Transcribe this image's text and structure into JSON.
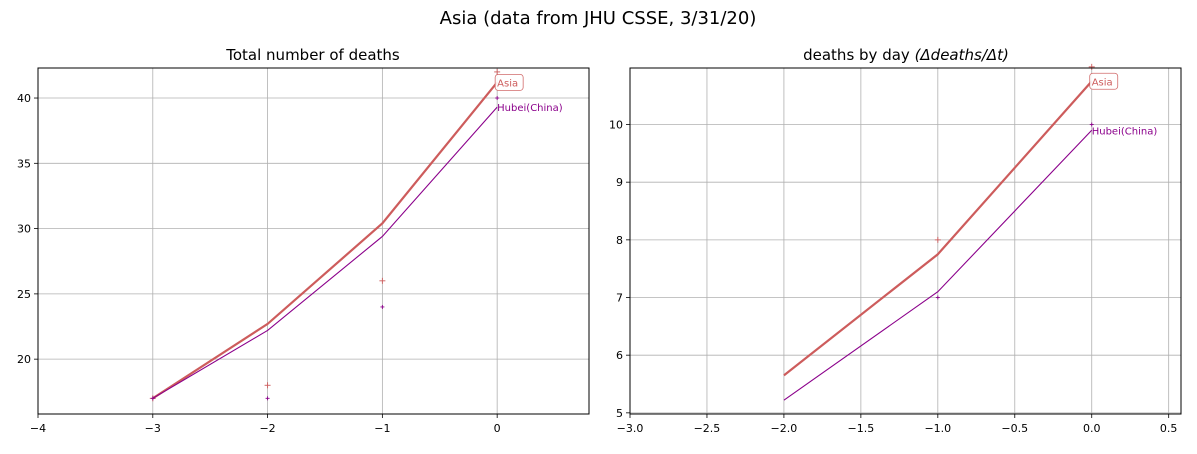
{
  "figure": {
    "suptitle": "Asia (data from JHU CSSE, 3/31/20)"
  },
  "colors": {
    "asia": "#cd5c5c",
    "hubei": "#8b008b",
    "grid": "#b0b0b0",
    "axis": "#000000"
  },
  "chart_data": [
    {
      "type": "line",
      "title": "Total number of deaths",
      "xlabel": "",
      "ylabel": "",
      "xlim": [
        -4,
        0.8
      ],
      "ylim": [
        15.8,
        42.3
      ],
      "xticks": [
        -4,
        -3,
        -2,
        -1,
        0
      ],
      "xtick_labels": [
        "−4",
        "−3",
        "−2",
        "−1",
        "0"
      ],
      "yticks": [
        20,
        25,
        30,
        35,
        40
      ],
      "ytick_labels": [
        "20",
        "25",
        "30",
        "35",
        "40"
      ],
      "grid": true,
      "series": [
        {
          "name": "Asia",
          "color": "#cd5c5c",
          "x": [
            -3,
            -2,
            -1,
            0
          ],
          "fit": [
            17.0,
            22.7,
            30.4,
            41.2
          ],
          "points": [
            17,
            18,
            26,
            42
          ]
        },
        {
          "name": "Hubei(China)",
          "color": "#8b008b",
          "x": [
            -3,
            -2,
            -1,
            0
          ],
          "fit": [
            17.0,
            22.2,
            29.4,
            39.3
          ],
          "points": [
            17,
            17,
            24,
            40
          ]
        }
      ]
    },
    {
      "type": "line",
      "title": "deaths by day",
      "title_math": "(Δdeaths/Δt)",
      "xlabel": "",
      "ylabel": "",
      "xlim": [
        -3.0,
        0.58
      ],
      "ylim": [
        4.98,
        10.98
      ],
      "xticks": [
        -3.0,
        -2.5,
        -2.0,
        -1.5,
        -1.0,
        -0.5,
        0.0,
        0.5
      ],
      "xtick_labels": [
        "−3.0",
        "−2.5",
        "−2.0",
        "−1.5",
        "−1.0",
        "−0.5",
        "0.0",
        "0.5"
      ],
      "yticks": [
        5,
        6,
        7,
        8,
        9,
        10
      ],
      "ytick_labels": [
        "5",
        "6",
        "7",
        "8",
        "9",
        "10"
      ],
      "grid": true,
      "series": [
        {
          "name": "Asia",
          "color": "#cd5c5c",
          "x": [
            -2,
            -1,
            0
          ],
          "fit": [
            5.65,
            7.75,
            10.75
          ],
          "points": [
            null,
            8,
            11
          ]
        },
        {
          "name": "Hubei(China)",
          "color": "#8b008b",
          "x": [
            -2,
            -1,
            0
          ],
          "fit": [
            5.22,
            7.1,
            9.9
          ],
          "points": [
            null,
            7,
            10
          ]
        }
      ]
    }
  ]
}
